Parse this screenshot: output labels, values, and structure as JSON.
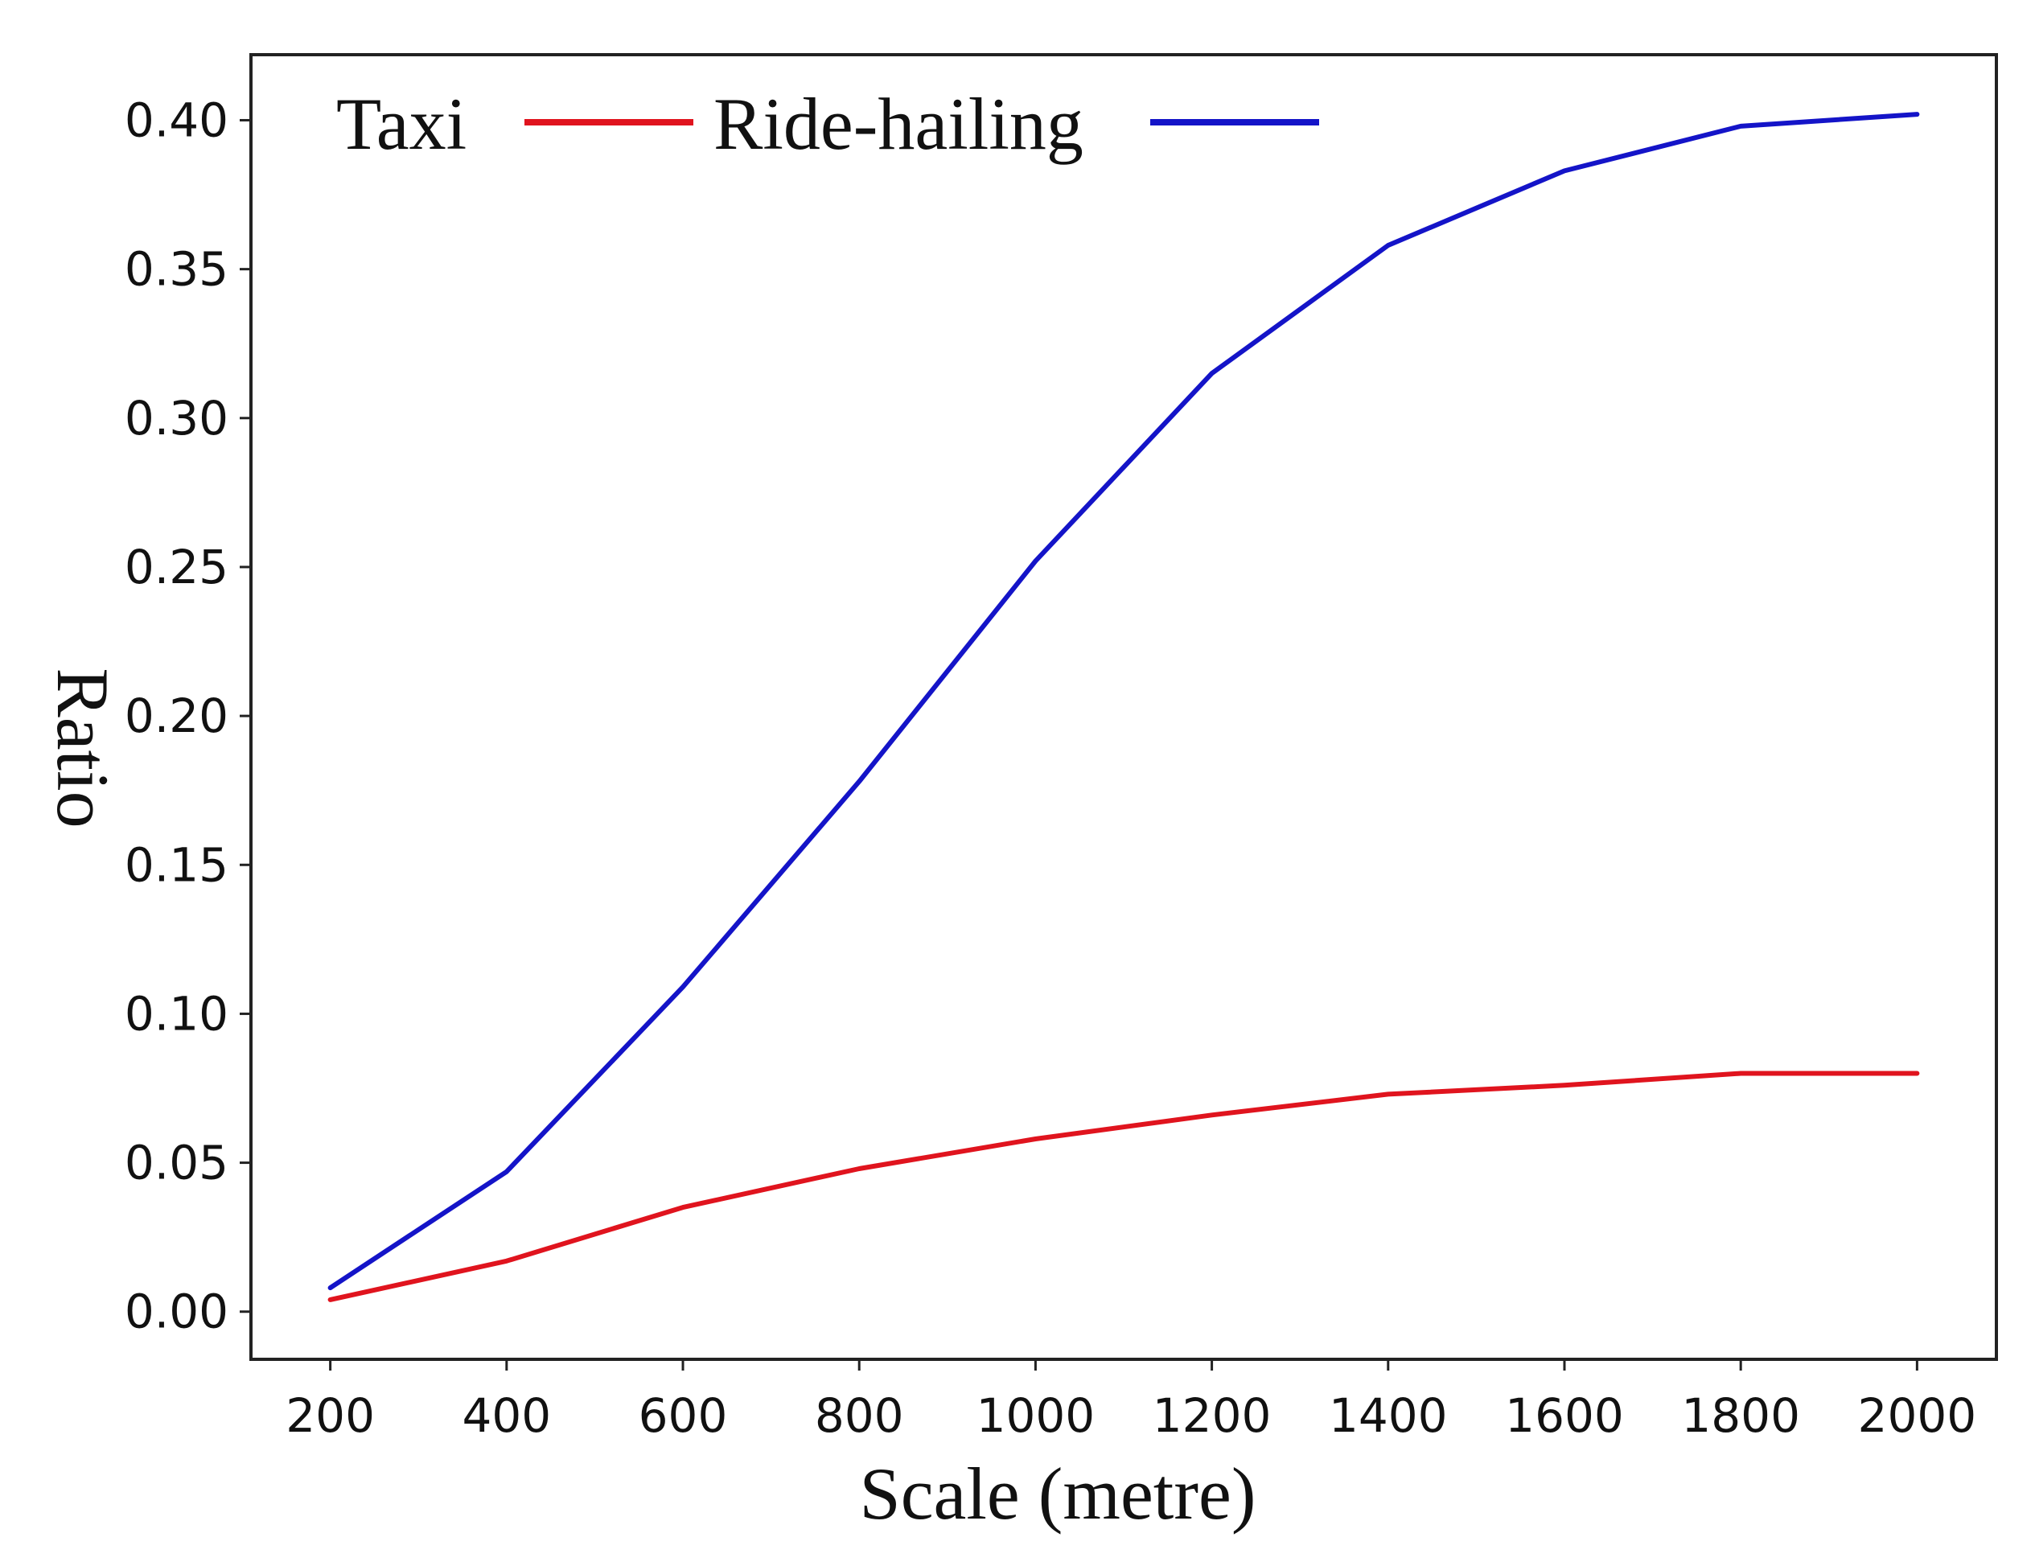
{
  "chart_data": {
    "type": "line",
    "title": "",
    "xlabel": "Scale (metre)",
    "ylabel": "Ratio",
    "x": [
      200,
      400,
      600,
      800,
      1000,
      1200,
      1400,
      1600,
      1800,
      2000
    ],
    "xticks": [
      "200",
      "400",
      "600",
      "800",
      "1000",
      "1200",
      "1400",
      "1600",
      "1800",
      "2000"
    ],
    "yticks": [
      "0.00",
      "0.05",
      "0.10",
      "0.15",
      "0.20",
      "0.25",
      "0.30",
      "0.35",
      "0.40"
    ],
    "yticks_values": [
      0.0,
      0.05,
      0.1,
      0.15,
      0.2,
      0.25,
      0.3,
      0.35,
      0.4
    ],
    "xlim": [
      110,
      2090
    ],
    "ylim": [
      -0.016,
      0.422
    ],
    "grid": false,
    "legend_position": "top-left",
    "series": [
      {
        "name": "Taxi",
        "color": "#e0141e",
        "values": [
          0.004,
          0.017,
          0.035,
          0.048,
          0.058,
          0.066,
          0.073,
          0.076,
          0.08,
          0.08
        ]
      },
      {
        "name": "Ride-hailing",
        "color": "#1414c8",
        "values": [
          0.008,
          0.047,
          0.109,
          0.178,
          0.252,
          0.315,
          0.358,
          0.383,
          0.398,
          0.402
        ]
      }
    ]
  }
}
